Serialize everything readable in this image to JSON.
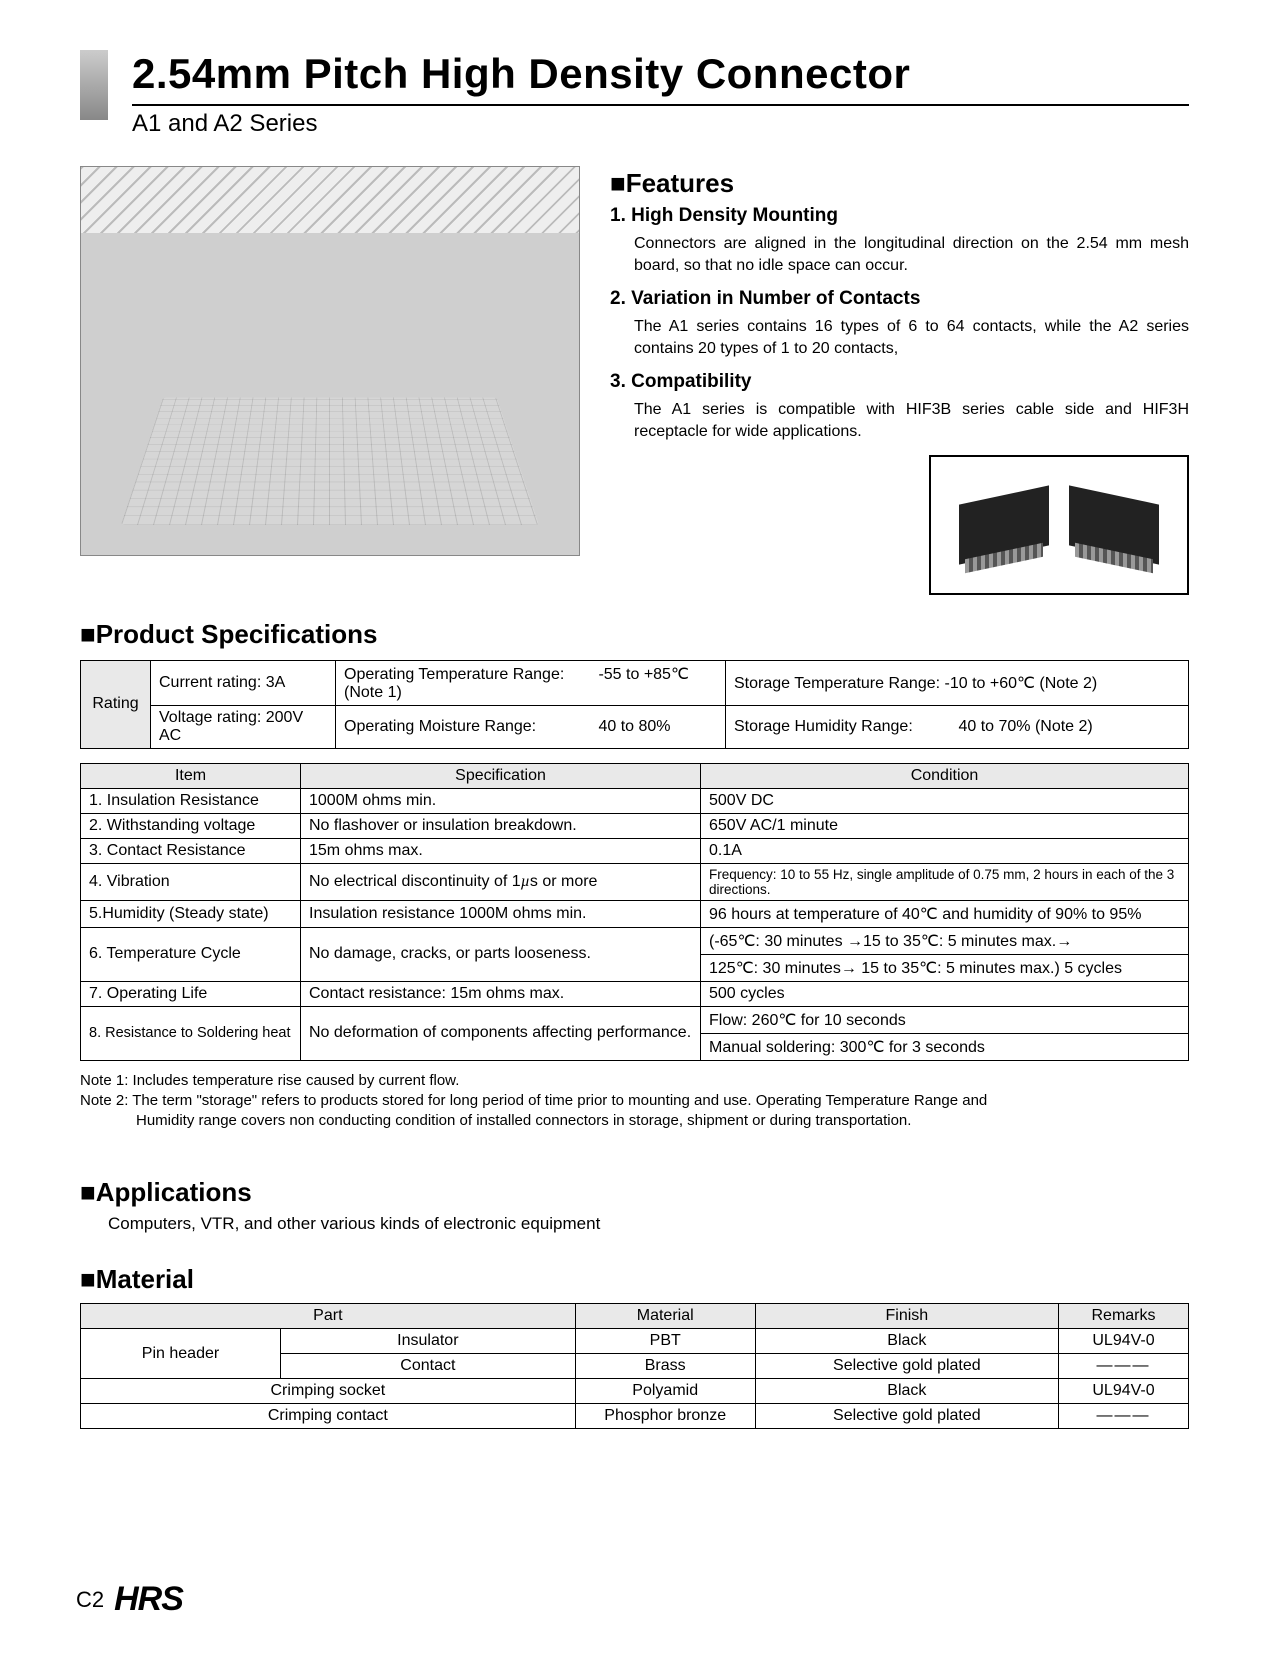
{
  "header": {
    "title": "2.54mm Pitch High Density Connector",
    "subtitle": "A1 and A2 Series"
  },
  "features": {
    "heading": "■Features",
    "items": [
      {
        "title": "1. High Density Mounting",
        "body": "Connectors are aligned in the longitudinal direction on the 2.54 mm mesh board, so that no idle space can occur."
      },
      {
        "title": "2. Variation in Number of Contacts",
        "body": "The A1 series contains 16 types of 6 to 64 contacts, while the A2 series contains 20 types of 1 to 20 contacts,"
      },
      {
        "title": "3. Compatibility",
        "body": "The A1 series is compatible with HIF3B series cable side and HIF3H receptacle for wide applications."
      }
    ]
  },
  "product_spec_heading": "■Product Specifications",
  "rating": {
    "label": "Rating",
    "r1c1": "Current rating: 3A",
    "r1c2a": "Operating Temperature Range:",
    "r1c2b": "-55 to +85℃ (Note 1)",
    "r1c3": "Storage Temperature Range: -10 to +60℃ (Note 2)",
    "r2c1": "Voltage rating: 200V AC",
    "r2c2a": "Operating Moisture Range:",
    "r2c2b": "40 to 80%",
    "r2c3a": "Storage Humidity Range:",
    "r2c3b": "40 to 70% (Note 2)"
  },
  "specs": {
    "headers": {
      "item": "Item",
      "spec": "Specification",
      "cond": "Condition"
    },
    "rows": [
      {
        "item": "1. Insulation Resistance",
        "spec": "1000M ohms min.",
        "cond": "500V DC"
      },
      {
        "item": "2. Withstanding voltage",
        "spec": "No flashover or insulation breakdown.",
        "cond": "650V AC/1 minute"
      },
      {
        "item": "3. Contact Resistance",
        "spec": "15m ohms max.",
        "cond": "0.1A"
      },
      {
        "item": "4. Vibration",
        "spec_html": "No electrical discontinuity of 1<span class='mu'>µ</span>s or more",
        "cond": "Frequency: 10 to 55 Hz, single amplitude of 0.75 mm, 2 hours in each of the 3 directions.",
        "cond_small": true
      },
      {
        "item": "5.Humidity (Steady state)",
        "spec": "Insulation resistance 1000M ohms min.",
        "cond": "96 hours at temperature of 40℃ and humidity of 90% to 95%"
      },
      {
        "item": "6. Temperature Cycle",
        "spec": "No damage, cracks, or parts looseness.",
        "cond_rows": [
          "(-65℃: 30 minutes →15 to 35℃: 5 minutes max.→",
          "125℃: 30 minutes→ 15 to 35℃: 5 minutes max.) 5 cycles"
        ]
      },
      {
        "item": "7. Operating Life",
        "spec": "Contact resistance: 15m ohms max.",
        "cond": "500 cycles"
      },
      {
        "item": "8. Resistance to Soldering heat",
        "item_small": true,
        "spec": "No deformation of components affecting performance.",
        "cond_rows": [
          "Flow: 260℃ for 10 seconds",
          "Manual soldering: 300℃ for 3 seconds"
        ]
      }
    ]
  },
  "notes": {
    "n1": "Note 1: Includes temperature rise caused by current flow.",
    "n2a": "Note 2: The term \"storage\" refers to products stored for long period of time prior to mounting and use. Operating Temperature Range and",
    "n2b": "Humidity range covers non conducting condition of installed connectors in storage, shipment or during transportation."
  },
  "applications": {
    "heading": "■Applications",
    "body": "Computers, VTR, and other various kinds of electronic equipment"
  },
  "material": {
    "heading": "■Material",
    "headers": {
      "part": "Part",
      "material": "Material",
      "finish": "Finish",
      "remarks": "Remarks"
    },
    "rows": [
      {
        "part": "Pin header",
        "sub": "Insulator",
        "material": "PBT",
        "finish": "Black",
        "remarks": "UL94V-0"
      },
      {
        "sub": "Contact",
        "material": "Brass",
        "finish": "Selective gold plated",
        "remarks_dash": true
      },
      {
        "part_full": "Crimping socket",
        "material": "Polyamid",
        "finish": "Black",
        "remarks": "UL94V-0"
      },
      {
        "part_full": "Crimping contact",
        "material": "Phosphor bronze",
        "finish": "Selective gold plated",
        "remarks_dash": true
      }
    ]
  },
  "footer": {
    "page": "C2",
    "logo": "HRS"
  },
  "colors": {
    "header_bg": "#e9e9e9",
    "border": "#000000"
  }
}
